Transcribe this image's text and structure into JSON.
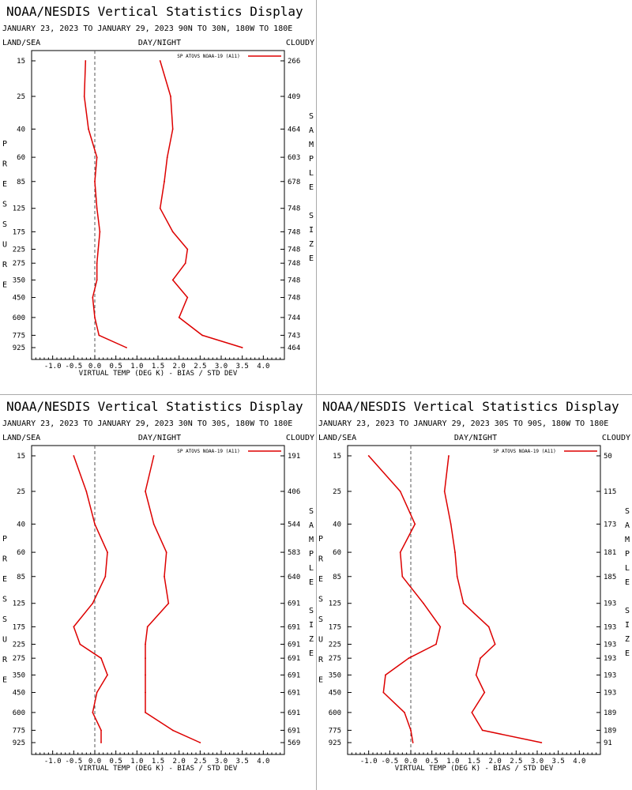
{
  "chart_data": [
    {
      "type": "line",
      "title": "NOAA/NESDIS Vertical Statistics Display",
      "subtitle": "JANUARY 23, 2023 TO JANUARY 29, 2023 90N TO 30N, 180W TO 180E",
      "top_labels": {
        "left": "LAND/SEA",
        "center": "DAY/NIGHT",
        "right": "CLOUDY"
      },
      "xlabel": "VIRTUAL TEMP (DEG K) - BIAS / STD DEV",
      "ylabel": "PRESSURE",
      "right_axis_label": "SAMPLE SIZE",
      "xlim": [
        -1.5,
        4.5
      ],
      "x_ticks": [
        "-1.0",
        "-0.5",
        "0.0",
        "0.5",
        "1.0",
        "1.5",
        "2.0",
        "2.5",
        "3.0",
        "3.5",
        "4.0"
      ],
      "pressure_levels": [
        "15",
        "25",
        "40",
        "60",
        "85",
        "125",
        "175",
        "225",
        "275",
        "350",
        "450",
        "600",
        "775",
        "925"
      ],
      "sample_size": [
        "266",
        "409",
        "464",
        "603",
        "678",
        "748",
        "748",
        "748",
        "748",
        "748",
        "748",
        "744",
        "743",
        "464"
      ],
      "legend": "SP ATOVS NOAA-19 (A11)",
      "series": [
        {
          "name": "bias",
          "values": [
            -0.22,
            -0.25,
            -0.15,
            0.05,
            0.0,
            0.05,
            0.12,
            0.08,
            0.05,
            0.05,
            -0.05,
            0.0,
            0.1,
            0.75
          ]
        },
        {
          "name": "std_dev",
          "values": [
            1.55,
            1.8,
            1.85,
            1.72,
            1.65,
            1.55,
            1.85,
            2.2,
            2.15,
            1.85,
            2.2,
            2.0,
            2.55,
            3.5
          ]
        }
      ]
    },
    {
      "type": "line",
      "title": "NOAA/NESDIS Vertical Statistics Display",
      "subtitle": "JANUARY 23, 2023 TO JANUARY 29, 2023 30N TO 30S, 180W TO 180E",
      "top_labels": {
        "left": "LAND/SEA",
        "center": "DAY/NIGHT",
        "right": "CLOUDY"
      },
      "xlabel": "VIRTUAL TEMP (DEG K) - BIAS / STD DEV",
      "ylabel": "PRESSURE",
      "right_axis_label": "SAMPLE SIZE",
      "xlim": [
        -1.5,
        4.5
      ],
      "x_ticks": [
        "-1.0",
        "-0.5",
        "0.0",
        "0.5",
        "1.0",
        "1.5",
        "2.0",
        "2.5",
        "3.0",
        "3.5",
        "4.0"
      ],
      "pressure_levels": [
        "15",
        "25",
        "40",
        "60",
        "85",
        "125",
        "175",
        "225",
        "275",
        "350",
        "450",
        "600",
        "775",
        "925"
      ],
      "sample_size": [
        "191",
        "406",
        "544",
        "583",
        "640",
        "691",
        "691",
        "691",
        "691",
        "691",
        "691",
        "691",
        "691",
        "569"
      ],
      "legend": "SP ATOVS NOAA-19 (A11)",
      "series": [
        {
          "name": "bias",
          "values": [
            -0.5,
            -0.2,
            0.0,
            0.3,
            0.25,
            -0.05,
            -0.5,
            -0.35,
            0.15,
            0.3,
            0.05,
            -0.05,
            0.15,
            0.15
          ]
        },
        {
          "name": "std_dev",
          "values": [
            1.4,
            1.2,
            1.4,
            1.7,
            1.65,
            1.75,
            1.25,
            1.2,
            1.2,
            1.2,
            1.2,
            1.2,
            1.85,
            2.5
          ]
        }
      ]
    },
    {
      "type": "line",
      "title": "NOAA/NESDIS Vertical Statistics Display",
      "subtitle": "JANUARY 23, 2023 TO JANUARY 29, 2023 30S TO 90S, 180W TO 180E",
      "top_labels": {
        "left": "LAND/SEA",
        "center": "DAY/NIGHT",
        "right": "CLOUDY"
      },
      "xlabel": "VIRTUAL TEMP (DEG K) - BIAS / STD DEV",
      "ylabel": "PRESSURE",
      "right_axis_label": "SAMPLE SIZE",
      "xlim": [
        -1.5,
        4.5
      ],
      "x_ticks": [
        "-1.0",
        "-0.5",
        "0.0",
        "0.5",
        "1.0",
        "1.5",
        "2.0",
        "2.5",
        "3.0",
        "3.5",
        "4.0"
      ],
      "pressure_levels": [
        "15",
        "25",
        "40",
        "60",
        "85",
        "125",
        "175",
        "225",
        "275",
        "350",
        "450",
        "600",
        "775",
        "925"
      ],
      "sample_size": [
        "50",
        "115",
        "173",
        "181",
        "185",
        "193",
        "193",
        "193",
        "193",
        "193",
        "193",
        "189",
        "189",
        "91"
      ],
      "legend": "SP ATOVS NOAA-19 (A11)",
      "series": [
        {
          "name": "bias",
          "values": [
            -1.0,
            -0.25,
            0.1,
            -0.25,
            -0.2,
            0.3,
            0.7,
            0.6,
            -0.05,
            -0.6,
            -0.65,
            -0.15,
            0.0,
            0.05
          ]
        },
        {
          "name": "std_dev",
          "values": [
            0.9,
            0.8,
            0.95,
            1.05,
            1.1,
            1.25,
            1.85,
            2.0,
            1.65,
            1.55,
            1.75,
            1.45,
            1.7,
            3.1
          ]
        }
      ]
    }
  ],
  "colors": {
    "line": "#dd0000",
    "axis": "#000000",
    "zero_line": "#555555",
    "divider": "#aaaaaa"
  }
}
